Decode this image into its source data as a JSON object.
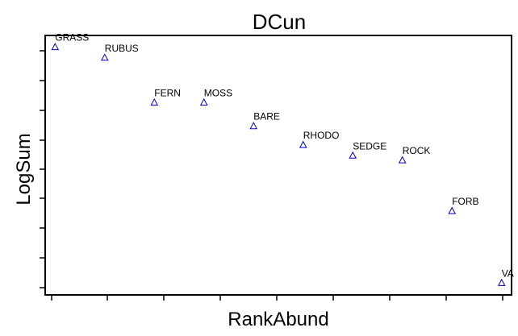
{
  "chart_data": {
    "type": "scatter",
    "title": "DCun",
    "xlabel": "RankAbund",
    "ylabel": "LogSum",
    "x_tick_labels_shown": false,
    "y_tick_labels_shown": false,
    "grid": false,
    "marker": "triangle-open",
    "marker_color": "#0000cc",
    "xlim": [
      0.8,
      10.2
    ],
    "ylim": [
      -0.05,
      1.05
    ],
    "points": [
      {
        "label": "GRASS",
        "x": 1,
        "y": 1.0
      },
      {
        "label": "RUBUS",
        "x": 2,
        "y": 0.955
      },
      {
        "label": "FERN",
        "x": 3,
        "y": 0.765
      },
      {
        "label": "MOSS",
        "x": 4,
        "y": 0.765
      },
      {
        "label": "BARE",
        "x": 5,
        "y": 0.665
      },
      {
        "label": "RHODO",
        "x": 6,
        "y": 0.585
      },
      {
        "label": "SEDGE",
        "x": 7,
        "y": 0.54
      },
      {
        "label": "ROCK",
        "x": 8,
        "y": 0.52
      },
      {
        "label": "FORB",
        "x": 9,
        "y": 0.305
      },
      {
        "label": "VA",
        "x": 10,
        "y": 0.0
      }
    ]
  }
}
